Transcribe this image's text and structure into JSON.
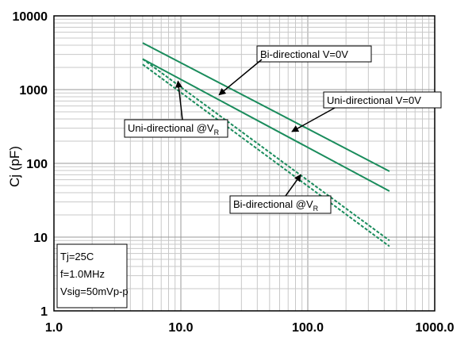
{
  "chart_data": {
    "type": "line",
    "title": "",
    "xlabel": "",
    "ylabel": "Cj (pF)",
    "x_scale": "log",
    "y_scale": "log",
    "xlim": [
      1,
      1000
    ],
    "ylim": [
      1,
      10000
    ],
    "x_tick_labels": [
      "1.0",
      "10.0",
      "100.0",
      "1000.0"
    ],
    "y_tick_labels": [
      "1",
      "10",
      "100",
      "1000",
      "10000"
    ],
    "grid": true,
    "line_color": "#1a8c5c",
    "series": [
      {
        "name": "Bi-directional V=0V",
        "style": "solid",
        "x": [
          5,
          440
        ],
        "y": [
          4300,
          78
        ]
      },
      {
        "name": "Uni-directional V=0V",
        "style": "solid",
        "x": [
          5,
          440
        ],
        "y": [
          2600,
          42
        ]
      },
      {
        "name": "Uni-directional @VR",
        "style": "dashed",
        "x": [
          5,
          440
        ],
        "y": [
          2600,
          9
        ]
      },
      {
        "name": "Bi-directional @VR",
        "style": "dashed",
        "x": [
          5,
          440
        ],
        "y": [
          2200,
          7.5
        ]
      }
    ],
    "annotations": [
      {
        "text": "Bi-directional V=0V",
        "arrow_to": [
          20,
          850
        ]
      },
      {
        "text": "Uni-directional V=0V",
        "arrow_to": [
          75,
          270
        ]
      },
      {
        "text": "Uni-directional @V",
        "subscript": "R",
        "arrow_to": [
          9.5,
          1300
        ]
      },
      {
        "text": "Bi-directional @V",
        "subscript": "R",
        "arrow_to": [
          88,
          70
        ]
      }
    ],
    "conditions": [
      "Tj=25C",
      "f=1.0MHz",
      "Vsig=50mVp-p"
    ]
  }
}
